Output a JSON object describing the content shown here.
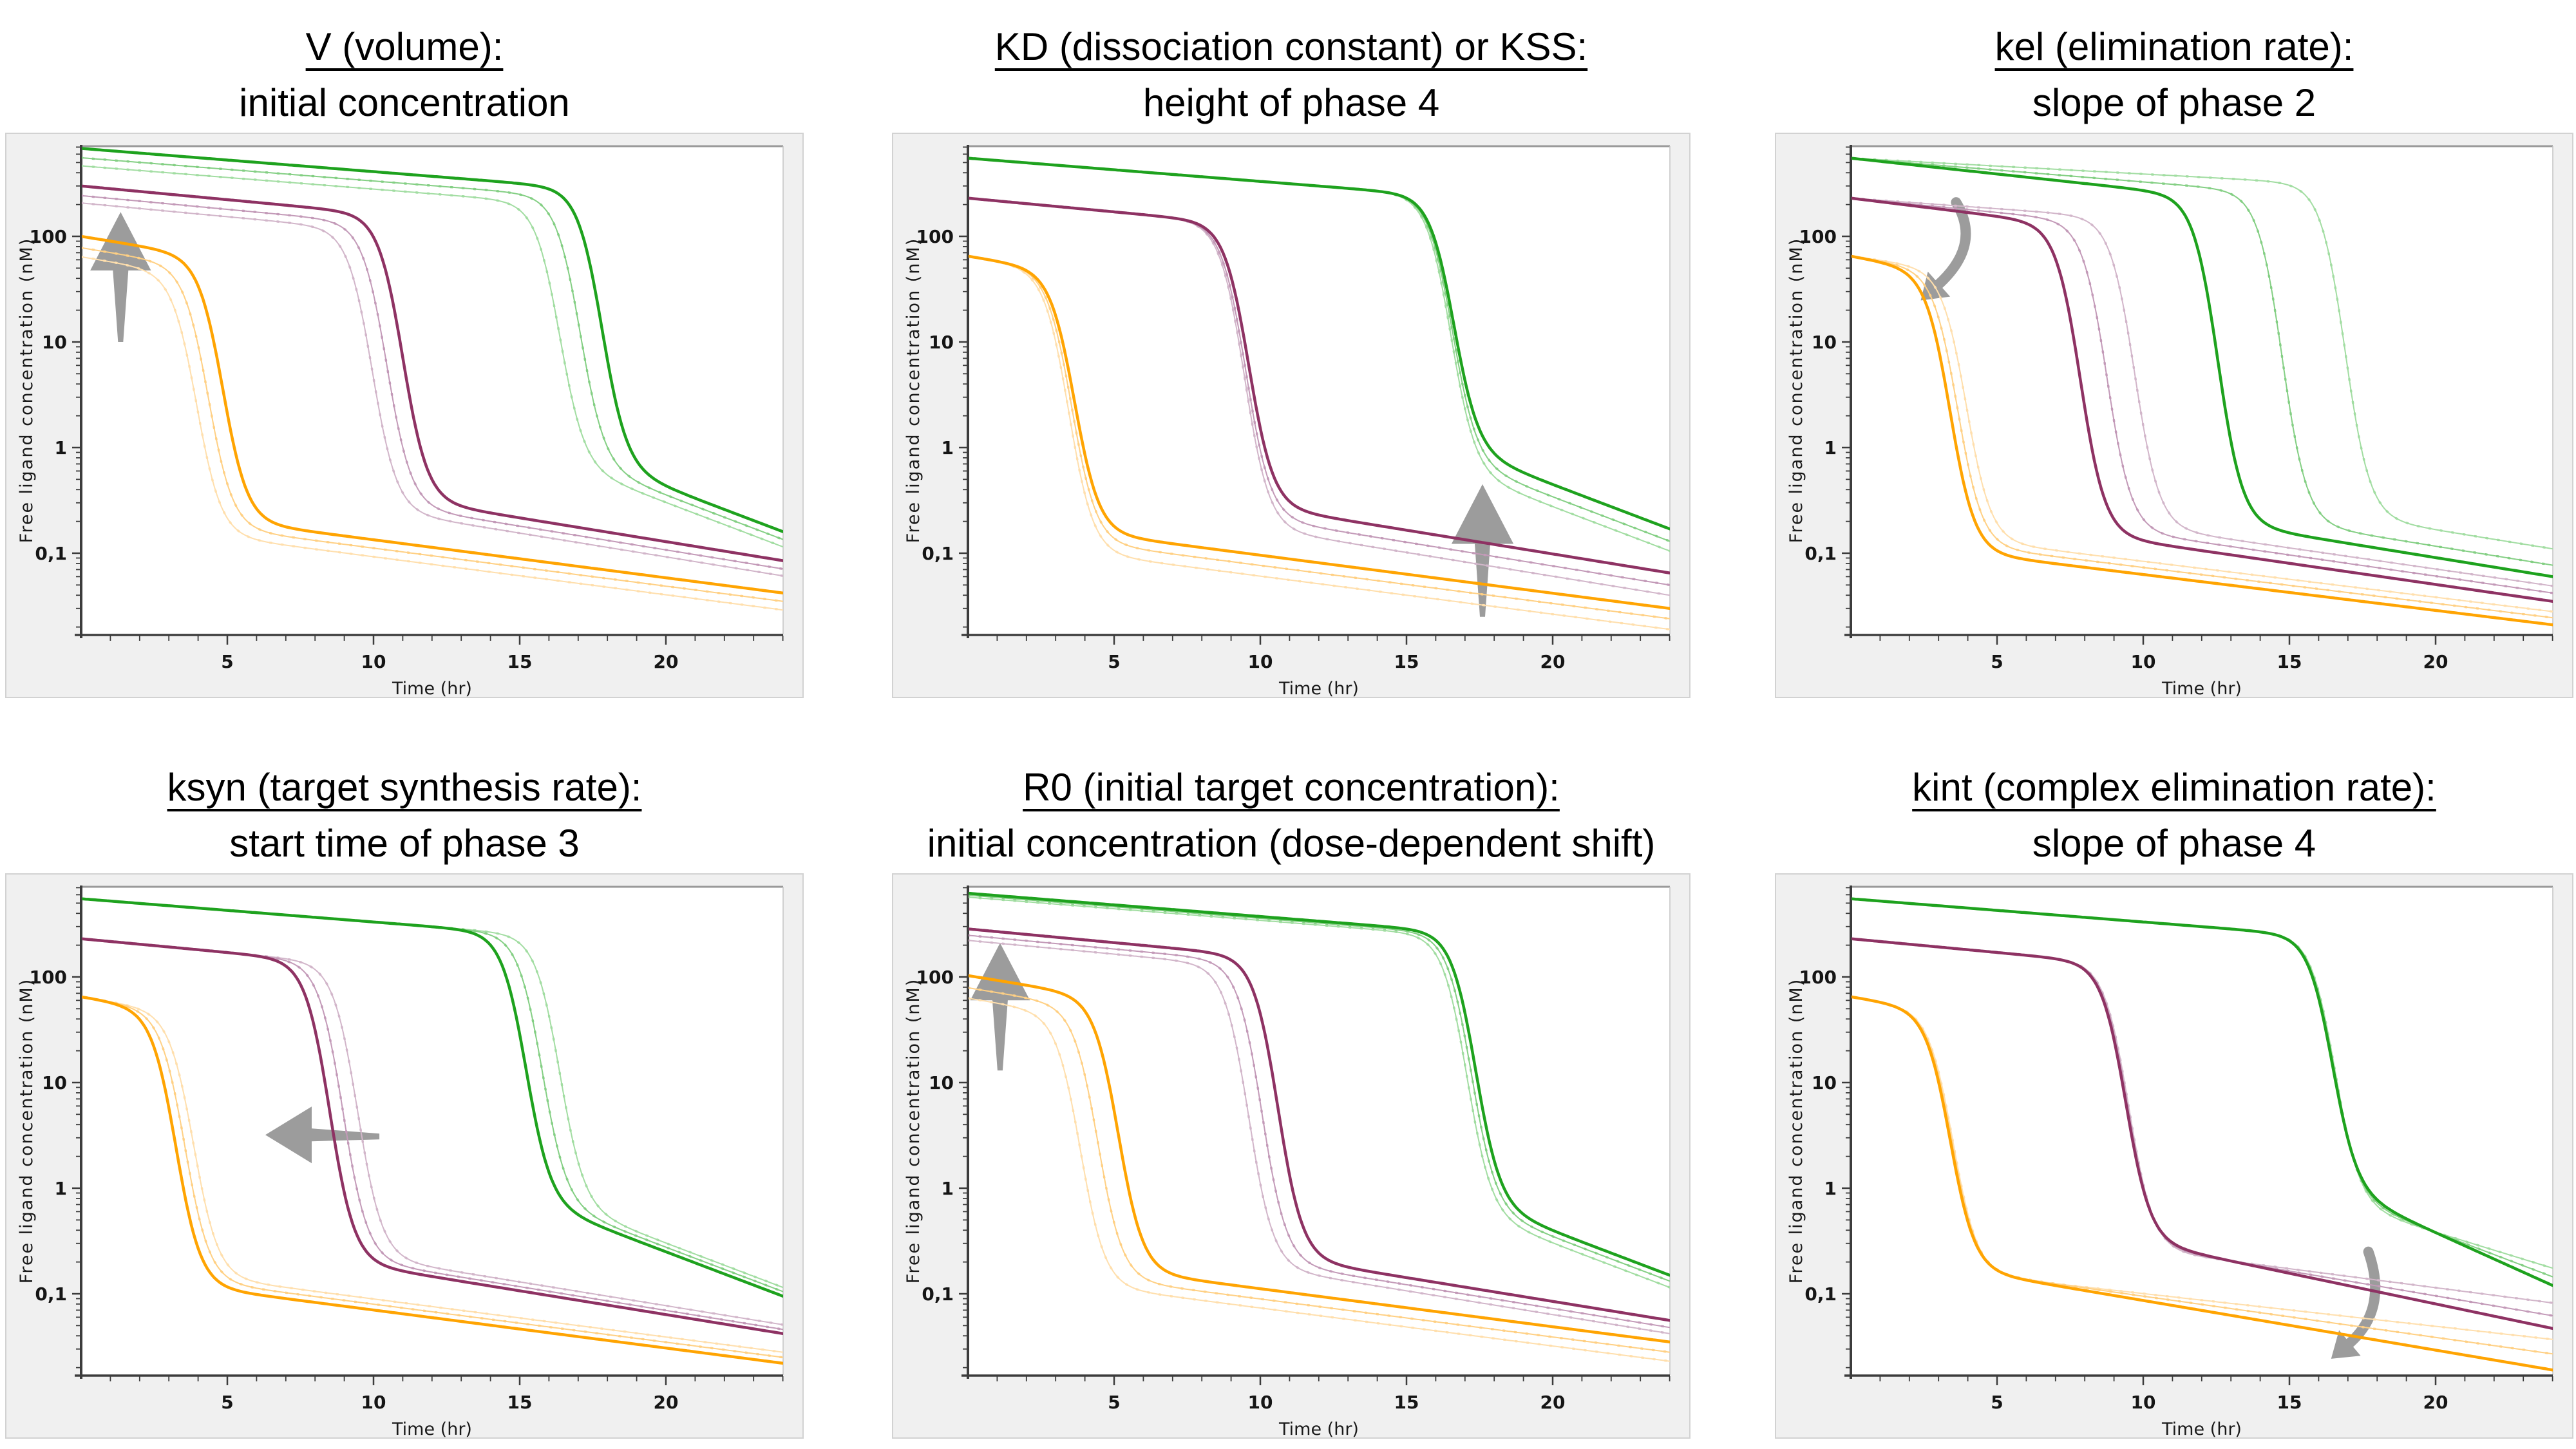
{
  "figure": {
    "background": "#ffffff",
    "panel_background": "#f0f0f0",
    "plot_background": "#ffffff",
    "panel_border_color": "#d2d2d2",
    "frame_top_color": "#9a9a9a",
    "frame_right_color": "#c4c4c4",
    "axis_line_color": "#3c3c3c",
    "tick_color": "#3c3c3c",
    "tick_label_color": "#151515",
    "axis_title_color": "#1a1a1a",
    "arrow_color": "#9c9c9c"
  },
  "colors": {
    "green-main": "#1ea21e",
    "green-light1": "#84cf84",
    "green-light2": "#a2dda2",
    "purple-main": "#8e3263",
    "purple-light1": "#c39ab8",
    "purple-light2": "#d2b6ca",
    "orange-main": "#ffa402",
    "orange-light1": "#ffd084",
    "orange-light2": "#ffdfad"
  },
  "axes": {
    "xlabel": "Time (hr)",
    "ylabel": "Free ligand concentration (nM)",
    "x_range": [
      0,
      24
    ],
    "x_major_ticks": [
      5,
      10,
      15,
      20
    ],
    "x_minor_step": 1,
    "y_scale": "log",
    "y_range": [
      0.017,
      710
    ],
    "y_major_ticks": [
      {
        "value": 100,
        "label": "100"
      },
      {
        "value": 10,
        "label": "10"
      },
      {
        "value": 1,
        "label": "1"
      },
      {
        "value": 0.1,
        "label": "0,1"
      }
    ],
    "grid": false,
    "legend": false
  },
  "chart_data": {
    "type": "line",
    "note_model": "log10 C(t) blends phase-2 line (C0, m2 decades/hr) into phase-4 tail (tail value at t=24, m4 decades/hr) with steep phase-3 drop centered at td",
    "panels": [
      {
        "id": "v-volume",
        "title": "V (volume):",
        "subtitle": "initial concentration",
        "arrow": {
          "type": "block-up",
          "x": 1.35,
          "from": 10,
          "to": 170
        },
        "series": [
          {
            "name": "green-light2",
            "color": "green-light2",
            "role": "variant",
            "params": {
              "C0": 465,
              "m2": 0.022,
              "td": 16.35,
              "tail": 0.115,
              "m4": 0.105
            }
          },
          {
            "name": "green-light1",
            "color": "green-light1",
            "role": "variant",
            "params": {
              "C0": 555,
              "m2": 0.022,
              "td": 17.05,
              "tail": 0.135,
              "m4": 0.105
            }
          },
          {
            "name": "green-main",
            "color": "green-main",
            "role": "main",
            "params": {
              "C0": 680,
              "m2": 0.022,
              "td": 17.8,
              "tail": 0.16,
              "m4": 0.105
            }
          },
          {
            "name": "purple-light2",
            "color": "purple-light2",
            "role": "variant",
            "params": {
              "C0": 207,
              "m2": 0.026,
              "td": 9.95,
              "tail": 0.061,
              "m4": 0.045
            }
          },
          {
            "name": "purple-light1",
            "color": "purple-light1",
            "role": "variant",
            "params": {
              "C0": 243,
              "m2": 0.026,
              "td": 10.45,
              "tail": 0.071,
              "m4": 0.045
            }
          },
          {
            "name": "purple-main",
            "color": "purple-main",
            "role": "main",
            "params": {
              "C0": 300,
              "m2": 0.026,
              "td": 11.0,
              "tail": 0.085,
              "m4": 0.045
            }
          },
          {
            "name": "orange-light2",
            "color": "orange-light2",
            "role": "variant",
            "params": {
              "C0": 64,
              "m2": 0.045,
              "td": 3.95,
              "tail": 0.029,
              "m4": 0.036
            }
          },
          {
            "name": "orange-light1",
            "color": "orange-light1",
            "role": "variant",
            "params": {
              "C0": 78,
              "m2": 0.045,
              "td": 4.35,
              "tail": 0.035,
              "m4": 0.036
            }
          },
          {
            "name": "orange-main",
            "color": "orange-main",
            "role": "main",
            "params": {
              "C0": 100,
              "m2": 0.045,
              "td": 4.85,
              "tail": 0.042,
              "m4": 0.036
            }
          }
        ]
      },
      {
        "id": "kd-kss",
        "title": "KD (dissociation constant) or KSS:",
        "subtitle": "height of phase 4",
        "arrow": {
          "type": "block-up",
          "x": 17.6,
          "from": 0.025,
          "to": 0.45
        },
        "series": [
          {
            "name": "green-light2",
            "color": "green-light2",
            "role": "variant",
            "params": {
              "C0": 550,
              "m2": 0.022,
              "td": 16.5,
              "tail": 0.105,
              "m4": 0.105
            }
          },
          {
            "name": "green-light1",
            "color": "green-light1",
            "role": "variant",
            "params": {
              "C0": 550,
              "m2": 0.022,
              "td": 16.55,
              "tail": 0.13,
              "m4": 0.105
            }
          },
          {
            "name": "green-main",
            "color": "green-main",
            "role": "main",
            "params": {
              "C0": 550,
              "m2": 0.022,
              "td": 16.6,
              "tail": 0.17,
              "m4": 0.105
            }
          },
          {
            "name": "purple-light2",
            "color": "purple-light2",
            "role": "variant",
            "params": {
              "C0": 230,
              "m2": 0.026,
              "td": 9.45,
              "tail": 0.04,
              "m4": 0.045
            }
          },
          {
            "name": "purple-light1",
            "color": "purple-light1",
            "role": "variant",
            "params": {
              "C0": 230,
              "m2": 0.026,
              "td": 9.5,
              "tail": 0.05,
              "m4": 0.045
            }
          },
          {
            "name": "purple-main",
            "color": "purple-main",
            "role": "main",
            "params": {
              "C0": 230,
              "m2": 0.026,
              "td": 9.6,
              "tail": 0.065,
              "m4": 0.045
            }
          },
          {
            "name": "orange-light2",
            "color": "orange-light2",
            "role": "variant",
            "params": {
              "C0": 65,
              "m2": 0.045,
              "td": 3.45,
              "tail": 0.019,
              "m4": 0.036
            }
          },
          {
            "name": "orange-light1",
            "color": "orange-light1",
            "role": "variant",
            "params": {
              "C0": 65,
              "m2": 0.045,
              "td": 3.55,
              "tail": 0.024,
              "m4": 0.036
            }
          },
          {
            "name": "orange-main",
            "color": "orange-main",
            "role": "main",
            "params": {
              "C0": 65,
              "m2": 0.045,
              "td": 3.65,
              "tail": 0.03,
              "m4": 0.036
            }
          }
        ]
      },
      {
        "id": "kel",
        "title": "kel (elimination rate):",
        "subtitle": "slope of phase 2",
        "arrow": {
          "type": "curved",
          "from": [
            3.6,
            210
          ],
          "ctrl": [
            4.5,
            82
          ],
          "to": [
            2.95,
            34
          ]
        },
        "series": [
          {
            "name": "green-light2",
            "color": "green-light2",
            "role": "variant",
            "params": {
              "C0": 550,
              "m2": 0.015,
              "td": 16.9,
              "tail": 0.11,
              "m4": 0.045
            }
          },
          {
            "name": "green-light1",
            "color": "green-light1",
            "role": "variant",
            "params": {
              "C0": 550,
              "m2": 0.0225,
              "td": 14.75,
              "tail": 0.077,
              "m4": 0.045
            }
          },
          {
            "name": "green-main",
            "color": "green-main",
            "role": "main",
            "params": {
              "C0": 550,
              "m2": 0.03,
              "td": 12.55,
              "tail": 0.06,
              "m4": 0.045
            }
          },
          {
            "name": "purple-light2",
            "color": "purple-light2",
            "role": "variant",
            "params": {
              "C0": 230,
              "m2": 0.02,
              "td": 9.7,
              "tail": 0.049,
              "m4": 0.04
            }
          },
          {
            "name": "purple-light1",
            "color": "purple-light1",
            "role": "variant",
            "params": {
              "C0": 230,
              "m2": 0.027,
              "td": 8.75,
              "tail": 0.042,
              "m4": 0.04
            }
          },
          {
            "name": "purple-main",
            "color": "purple-main",
            "role": "main",
            "params": {
              "C0": 230,
              "m2": 0.034,
              "td": 7.85,
              "tail": 0.035,
              "m4": 0.04
            }
          },
          {
            "name": "orange-light2",
            "color": "orange-light2",
            "role": "variant",
            "params": {
              "C0": 65,
              "m2": 0.038,
              "td": 3.95,
              "tail": 0.028,
              "m4": 0.034
            }
          },
          {
            "name": "orange-light1",
            "color": "orange-light1",
            "role": "variant",
            "params": {
              "C0": 65,
              "m2": 0.044,
              "td": 3.65,
              "tail": 0.0245,
              "m4": 0.034
            }
          },
          {
            "name": "orange-main",
            "color": "orange-main",
            "role": "main",
            "params": {
              "C0": 65,
              "m2": 0.05,
              "td": 3.4,
              "tail": 0.021,
              "m4": 0.034
            }
          }
        ]
      },
      {
        "id": "ksyn",
        "title": "ksyn (target synthesis rate):",
        "subtitle": "start time of phase 3",
        "arrow": {
          "type": "block-left",
          "y": 3.2,
          "from": 10.2,
          "to": 6.3
        },
        "series": [
          {
            "name": "green-light2",
            "color": "green-light2",
            "role": "variant",
            "params": {
              "C0": 550,
              "m2": 0.022,
              "td": 16.35,
              "tail": 0.115,
              "m4": 0.105
            }
          },
          {
            "name": "green-light1",
            "color": "green-light1",
            "role": "variant",
            "params": {
              "C0": 550,
              "m2": 0.022,
              "td": 15.75,
              "tail": 0.105,
              "m4": 0.105
            }
          },
          {
            "name": "green-main",
            "color": "green-main",
            "role": "main",
            "params": {
              "C0": 550,
              "m2": 0.022,
              "td": 15.2,
              "tail": 0.095,
              "m4": 0.105
            }
          },
          {
            "name": "purple-light2",
            "color": "purple-light2",
            "role": "variant",
            "params": {
              "C0": 230,
              "m2": 0.026,
              "td": 9.45,
              "tail": 0.051,
              "m4": 0.045
            }
          },
          {
            "name": "purple-light1",
            "color": "purple-light1",
            "role": "variant",
            "params": {
              "C0": 230,
              "m2": 0.026,
              "td": 8.95,
              "tail": 0.046,
              "m4": 0.045
            }
          },
          {
            "name": "purple-main",
            "color": "purple-main",
            "role": "main",
            "params": {
              "C0": 230,
              "m2": 0.026,
              "td": 8.5,
              "tail": 0.042,
              "m4": 0.045
            }
          },
          {
            "name": "orange-light2",
            "color": "orange-light2",
            "role": "variant",
            "params": {
              "C0": 65,
              "m2": 0.045,
              "td": 3.85,
              "tail": 0.028,
              "m4": 0.036
            }
          },
          {
            "name": "orange-light1",
            "color": "orange-light1",
            "role": "variant",
            "params": {
              "C0": 65,
              "m2": 0.045,
              "td": 3.55,
              "tail": 0.025,
              "m4": 0.036
            }
          },
          {
            "name": "orange-main",
            "color": "orange-main",
            "role": "main",
            "params": {
              "C0": 65,
              "m2": 0.045,
              "td": 3.25,
              "tail": 0.022,
              "m4": 0.036
            }
          }
        ]
      },
      {
        "id": "r0",
        "title": "R0 (initial target concentration):",
        "subtitle": "initial concentration (dose-dependent shift)",
        "arrow": {
          "type": "block-up",
          "x": 1.1,
          "from": 13,
          "to": 210
        },
        "series": [
          {
            "name": "green-light2",
            "color": "green-light2",
            "role": "variant",
            "params": {
              "C0": 570,
              "m2": 0.022,
              "td": 17.05,
              "tail": 0.115,
              "m4": 0.105
            }
          },
          {
            "name": "green-light1",
            "color": "green-light1",
            "role": "variant",
            "params": {
              "C0": 595,
              "m2": 0.022,
              "td": 17.2,
              "tail": 0.132,
              "m4": 0.105
            }
          },
          {
            "name": "green-main",
            "color": "green-main",
            "role": "main",
            "params": {
              "C0": 620,
              "m2": 0.022,
              "td": 17.35,
              "tail": 0.15,
              "m4": 0.105
            }
          },
          {
            "name": "purple-light2",
            "color": "purple-light2",
            "role": "variant",
            "params": {
              "C0": 222,
              "m2": 0.026,
              "td": 9.6,
              "tail": 0.042,
              "m4": 0.045
            }
          },
          {
            "name": "purple-light1",
            "color": "purple-light1",
            "role": "variant",
            "params": {
              "C0": 248,
              "m2": 0.026,
              "td": 10.05,
              "tail": 0.048,
              "m4": 0.045
            }
          },
          {
            "name": "purple-main",
            "color": "purple-main",
            "role": "main",
            "params": {
              "C0": 285,
              "m2": 0.026,
              "td": 10.6,
              "tail": 0.056,
              "m4": 0.045
            }
          },
          {
            "name": "orange-light2",
            "color": "orange-light2",
            "role": "variant",
            "params": {
              "C0": 63,
              "m2": 0.045,
              "td": 3.85,
              "tail": 0.023,
              "m4": 0.036
            }
          },
          {
            "name": "orange-light1",
            "color": "orange-light1",
            "role": "variant",
            "params": {
              "C0": 79,
              "m2": 0.045,
              "td": 4.45,
              "tail": 0.028,
              "m4": 0.036
            }
          },
          {
            "name": "orange-main",
            "color": "orange-main",
            "role": "main",
            "params": {
              "C0": 103,
              "m2": 0.045,
              "td": 5.15,
              "tail": 0.035,
              "m4": 0.036
            }
          }
        ]
      },
      {
        "id": "kint",
        "title": "kint (complex elimination rate):",
        "subtitle": "slope of phase 4",
        "arrow": {
          "type": "curved",
          "from": [
            17.7,
            0.25
          ],
          "ctrl": [
            18.4,
            0.07
          ],
          "to": [
            17.0,
            0.033
          ]
        },
        "series": [
          {
            "name": "green-light2",
            "color": "green-light2",
            "role": "variant",
            "params": {
              "C0": 550,
              "m2": 0.022,
              "td": 16.55,
              "tail": 0.175,
              "m4": 0.085
            }
          },
          {
            "name": "green-light1",
            "color": "green-light1",
            "role": "variant",
            "params": {
              "C0": 550,
              "m2": 0.022,
              "td": 16.5,
              "tail": 0.145,
              "m4": 0.105
            }
          },
          {
            "name": "green-main",
            "color": "green-main",
            "role": "main",
            "params": {
              "C0": 550,
              "m2": 0.022,
              "td": 16.45,
              "tail": 0.12,
              "m4": 0.125
            }
          },
          {
            "name": "purple-light2",
            "color": "purple-light2",
            "role": "variant",
            "params": {
              "C0": 230,
              "m2": 0.026,
              "td": 9.5,
              "tail": 0.082,
              "m4": 0.036
            }
          },
          {
            "name": "purple-light1",
            "color": "purple-light1",
            "role": "variant",
            "params": {
              "C0": 230,
              "m2": 0.026,
              "td": 9.45,
              "tail": 0.062,
              "m4": 0.047
            }
          },
          {
            "name": "purple-main",
            "color": "purple-main",
            "role": "main",
            "params": {
              "C0": 230,
              "m2": 0.026,
              "td": 9.4,
              "tail": 0.047,
              "m4": 0.058
            }
          },
          {
            "name": "orange-light2",
            "color": "orange-light2",
            "role": "variant",
            "params": {
              "C0": 65,
              "m2": 0.045,
              "td": 3.5,
              "tail": 0.037,
              "m4": 0.031
            }
          },
          {
            "name": "orange-light1",
            "color": "orange-light1",
            "role": "variant",
            "params": {
              "C0": 65,
              "m2": 0.045,
              "td": 3.45,
              "tail": 0.027,
              "m4": 0.039
            }
          },
          {
            "name": "orange-main",
            "color": "orange-main",
            "role": "main",
            "params": {
              "C0": 65,
              "m2": 0.045,
              "td": 3.4,
              "tail": 0.019,
              "m4": 0.047
            }
          }
        ]
      }
    ]
  }
}
